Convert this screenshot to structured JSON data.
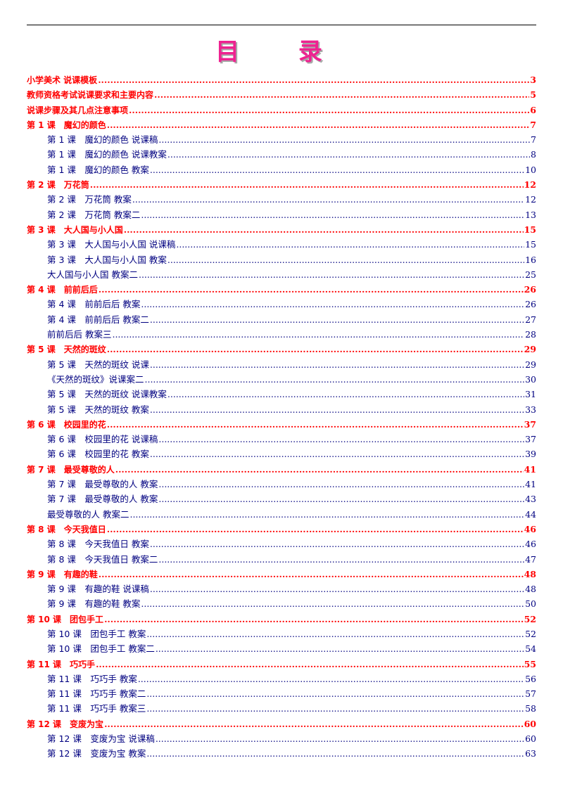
{
  "title": "目 录",
  "entries": [
    {
      "level": 1,
      "text": "小学美术 说课模板",
      "page": "3"
    },
    {
      "level": 1,
      "text": "教师资格考试说课要求和主要内容",
      "page": "5"
    },
    {
      "level": 1,
      "text": "说课步骤及其几点注意事项",
      "page": "6"
    },
    {
      "level": 1,
      "text": "第 1 课　魔幻的颜色",
      "page": "7"
    },
    {
      "level": 2,
      "text": "第 1 课　魔幻的颜色 说课稿",
      "page": "7"
    },
    {
      "level": 2,
      "text": "第 1 课　魔幻的颜色 说课教案",
      "page": "8"
    },
    {
      "level": 2,
      "text": "第 1 课　魔幻的颜色 教案",
      "page": "10"
    },
    {
      "level": 1,
      "text": "第 2 课　万花筒",
      "page": "12"
    },
    {
      "level": 2,
      "text": "第 2 课　万花筒 教案",
      "page": "12"
    },
    {
      "level": 2,
      "text": "第 2 课　万花筒 教案二",
      "page": "13"
    },
    {
      "level": 1,
      "text": "第 3 课　大人国与小人国",
      "page": "15"
    },
    {
      "level": 2,
      "text": "第 3 课　大人国与小人国 说课稿",
      "page": "15"
    },
    {
      "level": 2,
      "text": "第 3 课　大人国与小人国 教案",
      "page": "16"
    },
    {
      "level": 2,
      "text": "大人国与小人国 教案二",
      "page": "25"
    },
    {
      "level": 1,
      "text": "第 4 课　前前后后",
      "page": "26"
    },
    {
      "level": 2,
      "text": "第 4 课　前前后后 教案",
      "page": "26"
    },
    {
      "level": 2,
      "text": "第 4 课　前前后后 教案二",
      "page": "27"
    },
    {
      "level": 2,
      "text": "前前后后 教案三",
      "page": "28"
    },
    {
      "level": 1,
      "text": "第 5 课　天然的斑纹",
      "page": "29"
    },
    {
      "level": 2,
      "text": "第 5 课　天然的斑纹 说课",
      "page": "29"
    },
    {
      "level": 2,
      "text": "《天然的斑纹》说课案二",
      "page": "30"
    },
    {
      "level": 2,
      "text": "第 5 课　天然的斑纹 说课教案",
      "page": "31"
    },
    {
      "level": 2,
      "text": "第 5 课　天然的斑纹 教案",
      "page": "33"
    },
    {
      "level": 1,
      "text": "第 6 课　校园里的花",
      "page": "37"
    },
    {
      "level": 2,
      "text": "第 6 课　校园里的花 说课稿",
      "page": "37"
    },
    {
      "level": 2,
      "text": "第 6 课　校园里的花 教案",
      "page": "39"
    },
    {
      "level": 1,
      "text": "第 7 课　最受尊敬的人",
      "page": "41"
    },
    {
      "level": 2,
      "text": "第 7 课　最受尊敬的人 教案",
      "page": "41"
    },
    {
      "level": 2,
      "text": "第 7 课　最受尊敬的人 教案",
      "page": "43"
    },
    {
      "level": 2,
      "text": "最受尊敬的人 教案二",
      "page": "44"
    },
    {
      "level": 1,
      "text": "第 8 课　今天我值日",
      "page": "46"
    },
    {
      "level": 2,
      "text": "第 8 课　今天我值日 教案",
      "page": "46"
    },
    {
      "level": 2,
      "text": "第 8 课　今天我值日 教案二",
      "page": "47"
    },
    {
      "level": 1,
      "text": "第 9 课　有趣的鞋",
      "page": "48"
    },
    {
      "level": 2,
      "text": "第 9 课　有趣的鞋 说课稿",
      "page": "48"
    },
    {
      "level": 2,
      "text": "第 9 课　有趣的鞋 教案",
      "page": "50"
    },
    {
      "level": 1,
      "text": "第 10 课　团包手工",
      "page": "52"
    },
    {
      "level": 2,
      "text": "第 10 课　团包手工 教案",
      "page": "52"
    },
    {
      "level": 2,
      "text": "第 10 课　团包手工 教案二",
      "page": "54"
    },
    {
      "level": 1,
      "text": "第 11 课　巧巧手",
      "page": "55"
    },
    {
      "level": 2,
      "text": "第 11 课　巧巧手 教案",
      "page": "56"
    },
    {
      "level": 2,
      "text": "第 11 课　巧巧手 教案二",
      "page": "57"
    },
    {
      "level": 2,
      "text": "第 11 课　巧巧手 教案三",
      "page": "58"
    },
    {
      "level": 1,
      "text": "第 12 课　变废为宝",
      "page": "60"
    },
    {
      "level": 2,
      "text": "第 12 课　变废为宝 说课稿",
      "page": "60"
    },
    {
      "level": 2,
      "text": "第 12 课　变废为宝 教案",
      "page": "63"
    }
  ]
}
